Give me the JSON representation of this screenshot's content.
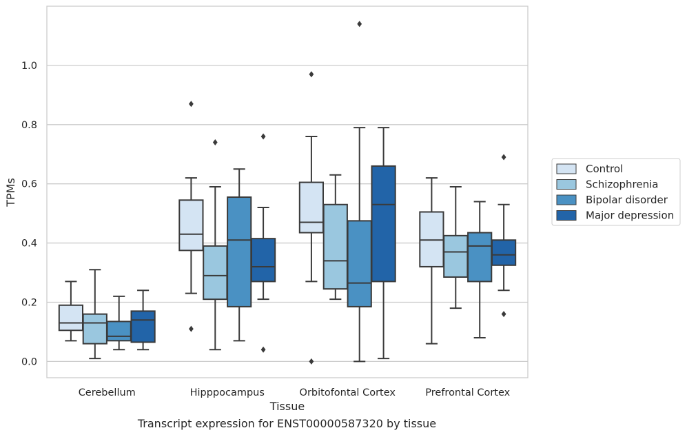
{
  "caption": "Transcript expression for ENST00000587320 by tissue",
  "chart_data": {
    "type": "box",
    "xlabel": "Tissue",
    "ylabel": "TPMs",
    "ylim": [
      -0.055,
      1.2
    ],
    "yticks": [
      0.0,
      0.2,
      0.4,
      0.6,
      0.8,
      1.0
    ],
    "ytick_labels": [
      "0.0",
      "0.2",
      "0.4",
      "0.6",
      "0.8",
      "1.0"
    ],
    "grid": "horizontal",
    "legend_position": "right",
    "categories": [
      "Cerebellum",
      "Hipppocampus",
      "Orbitofontal Cortex",
      "Prefrontal Cortex"
    ],
    "series": [
      {
        "name": "Control",
        "color": "#d4e4f3",
        "boxes": [
          {
            "q1": 0.105,
            "median": 0.13,
            "q3": 0.19,
            "whisker_low": 0.07,
            "whisker_high": 0.27,
            "outliers": []
          },
          {
            "q1": 0.375,
            "median": 0.43,
            "q3": 0.545,
            "whisker_low": 0.23,
            "whisker_high": 0.62,
            "outliers": [
              0.87,
              0.11
            ]
          },
          {
            "q1": 0.435,
            "median": 0.47,
            "q3": 0.605,
            "whisker_low": 0.27,
            "whisker_high": 0.76,
            "outliers": [
              0.97,
              0.0
            ]
          },
          {
            "q1": 0.32,
            "median": 0.41,
            "q3": 0.505,
            "whisker_low": 0.06,
            "whisker_high": 0.62,
            "outliers": []
          }
        ]
      },
      {
        "name": "Schizophrenia",
        "color": "#9ac7df",
        "boxes": [
          {
            "q1": 0.06,
            "median": 0.13,
            "q3": 0.16,
            "whisker_low": 0.01,
            "whisker_high": 0.31,
            "outliers": []
          },
          {
            "q1": 0.21,
            "median": 0.29,
            "q3": 0.39,
            "whisker_low": 0.04,
            "whisker_high": 0.59,
            "outliers": [
              0.74
            ]
          },
          {
            "q1": 0.245,
            "median": 0.34,
            "q3": 0.53,
            "whisker_low": 0.21,
            "whisker_high": 0.63,
            "outliers": []
          },
          {
            "q1": 0.285,
            "median": 0.37,
            "q3": 0.425,
            "whisker_low": 0.18,
            "whisker_high": 0.59,
            "outliers": []
          }
        ]
      },
      {
        "name": "Bipolar disorder",
        "color": "#4a91c3",
        "boxes": [
          {
            "q1": 0.07,
            "median": 0.085,
            "q3": 0.135,
            "whisker_low": 0.04,
            "whisker_high": 0.22,
            "outliers": []
          },
          {
            "q1": 0.185,
            "median": 0.41,
            "q3": 0.555,
            "whisker_low": 0.07,
            "whisker_high": 0.65,
            "outliers": []
          },
          {
            "q1": 0.185,
            "median": 0.265,
            "q3": 0.475,
            "whisker_low": 0.0,
            "whisker_high": 0.79,
            "outliers": [
              1.14
            ]
          },
          {
            "q1": 0.27,
            "median": 0.39,
            "q3": 0.435,
            "whisker_low": 0.08,
            "whisker_high": 0.54,
            "outliers": []
          }
        ]
      },
      {
        "name": "Major depression",
        "color": "#2264a8",
        "boxes": [
          {
            "q1": 0.065,
            "median": 0.14,
            "q3": 0.17,
            "whisker_low": 0.04,
            "whisker_high": 0.24,
            "outliers": []
          },
          {
            "q1": 0.27,
            "median": 0.32,
            "q3": 0.415,
            "whisker_low": 0.21,
            "whisker_high": 0.52,
            "outliers": [
              0.76,
              0.04
            ]
          },
          {
            "q1": 0.27,
            "median": 0.53,
            "q3": 0.66,
            "whisker_low": 0.01,
            "whisker_high": 0.79,
            "outliers": []
          },
          {
            "q1": 0.325,
            "median": 0.36,
            "q3": 0.41,
            "whisker_low": 0.24,
            "whisker_high": 0.53,
            "outliers": [
              0.69,
              0.16
            ]
          }
        ]
      }
    ]
  }
}
